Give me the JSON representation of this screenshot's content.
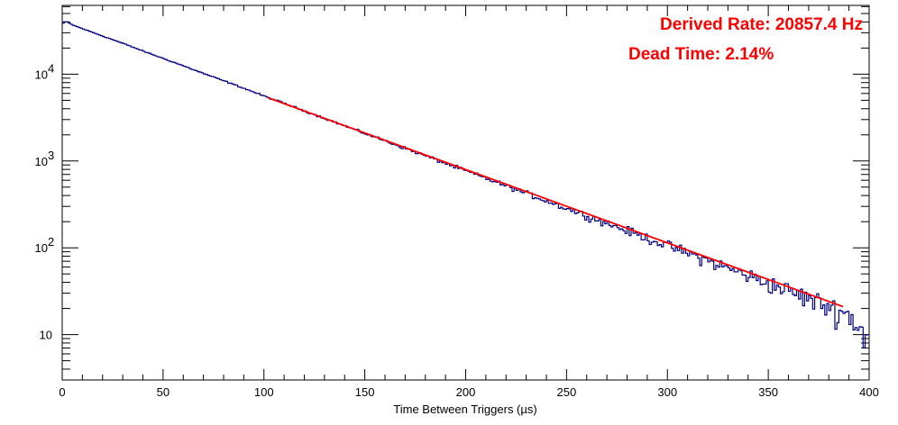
{
  "chart_data": {
    "type": "histogram",
    "title": "",
    "xlabel": "Time Between Triggers (µs)",
    "ylabel": "",
    "xlim": [
      0,
      400
    ],
    "ylim": [
      3.0,
      62000
    ],
    "yscale": "log",
    "grid": false,
    "legend": "none",
    "x_tick_labels": [
      "0",
      "50",
      "100",
      "150",
      "200",
      "250",
      "300",
      "350",
      "400"
    ],
    "x_tick_values": [
      0,
      50,
      100,
      150,
      200,
      250,
      300,
      350,
      400
    ],
    "y_tick_labels": [
      {
        "base": "10",
        "exp": "4",
        "value": 10000
      },
      {
        "base": "10",
        "exp": "3",
        "value": 1000
      },
      {
        "base": "10",
        "exp": "2",
        "value": 100
      },
      {
        "base": "",
        "exp": "",
        "text": "10",
        "value": 10
      }
    ],
    "series": [
      {
        "kind": "histogram",
        "color": "#000080",
        "bin_width": 1,
        "x": [
          0,
          2,
          5,
          10,
          20,
          30,
          40,
          50,
          60,
          70,
          80,
          90,
          100,
          110,
          120,
          130,
          140,
          150,
          160,
          170,
          180,
          190,
          200,
          210,
          220,
          230,
          240,
          250,
          260,
          270,
          280,
          290,
          300,
          310,
          320,
          330,
          340,
          350,
          360,
          370,
          380,
          390,
          395,
          400
        ],
        "y": [
          38000,
          40500,
          37000,
          33500,
          27500,
          22700,
          18500,
          15200,
          12500,
          10200,
          8400,
          6900,
          5600,
          4620,
          3780,
          3100,
          2540,
          2080,
          1710,
          1400,
          1150,
          940,
          770,
          632,
          518,
          425,
          348,
          285,
          234,
          192,
          157,
          129,
          106,
          87,
          71,
          58,
          48,
          39,
          32,
          26,
          21,
          17,
          12,
          9
        ]
      },
      {
        "kind": "fit",
        "color": "#ff0000",
        "x": [
          102,
          387
        ],
        "y": [
          5350,
          21
        ]
      }
    ],
    "annotations": [
      "Derived Rate: 20857.4 Hz",
      "Dead Time: 2.14%"
    ]
  }
}
